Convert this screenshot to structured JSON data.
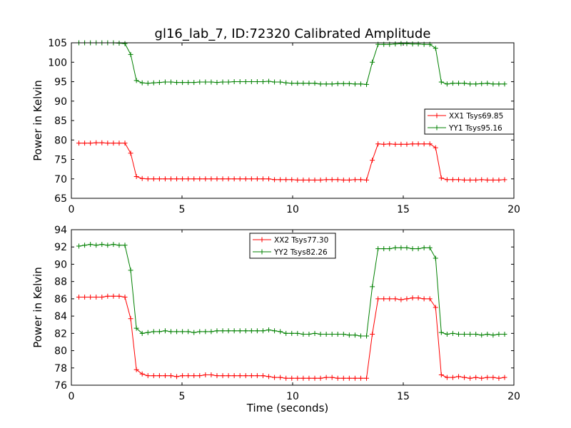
{
  "title": "gl16_lab_7, ID:72320 Calibrated Amplitude",
  "chart_data": [
    {
      "type": "line",
      "xlabel": "",
      "ylabel": "Power in Kelvin",
      "xlim": [
        0,
        20
      ],
      "ylim": [
        65,
        105
      ],
      "xticks": [
        "0",
        "5",
        "10",
        "15",
        "20"
      ],
      "yticks": [
        "65",
        "70",
        "75",
        "80",
        "85",
        "90",
        "95",
        "100",
        "105"
      ],
      "grid": false,
      "legend_position": "center-right",
      "x": [
        0.34,
        0.6,
        0.86,
        1.12,
        1.38,
        1.64,
        1.9,
        2.16,
        2.42,
        2.68,
        2.94,
        3.2,
        3.46,
        3.72,
        3.98,
        4.24,
        4.5,
        4.76,
        5.02,
        5.28,
        5.54,
        5.8,
        6.06,
        6.32,
        6.58,
        6.84,
        7.1,
        7.36,
        7.62,
        7.88,
        8.14,
        8.4,
        8.66,
        8.92,
        9.18,
        9.44,
        9.7,
        9.96,
        10.22,
        10.48,
        10.74,
        11.0,
        11.26,
        11.52,
        11.78,
        12.04,
        12.3,
        12.56,
        12.82,
        13.08,
        13.34,
        13.6,
        13.86,
        14.12,
        14.38,
        14.64,
        14.9,
        15.16,
        15.42,
        15.68,
        15.94,
        16.2,
        16.46,
        16.72,
        16.98,
        17.24,
        17.5,
        17.76,
        18.02,
        18.28,
        18.54,
        18.8,
        19.06,
        19.32,
        19.58
      ],
      "series": [
        {
          "name": "XX1 Tsys69.85",
          "color": "#ff0000",
          "values": [
            79.2,
            79.2,
            79.2,
            79.3,
            79.3,
            79.2,
            79.2,
            79.2,
            79.2,
            76.6,
            70.6,
            70.1,
            70.0,
            70.0,
            70.0,
            70.0,
            70.0,
            70.0,
            70.0,
            70.0,
            70.0,
            70.0,
            70.0,
            70.0,
            70.0,
            70.0,
            70.0,
            70.0,
            70.0,
            70.0,
            70.0,
            70.0,
            70.0,
            70.0,
            69.8,
            69.8,
            69.8,
            69.8,
            69.7,
            69.7,
            69.7,
            69.7,
            69.7,
            69.8,
            69.8,
            69.8,
            69.7,
            69.7,
            69.8,
            69.8,
            69.7,
            74.8,
            79.0,
            78.9,
            79.0,
            78.9,
            78.9,
            78.9,
            79.0,
            79.0,
            79.0,
            79.0,
            78.0,
            70.2,
            69.8,
            69.8,
            69.8,
            69.7,
            69.7,
            69.7,
            69.8,
            69.7,
            69.7,
            69.7,
            69.8
          ]
        },
        {
          "name": "YY1 Tsys95.16",
          "color": "#008000",
          "values": [
            105.0,
            105.0,
            105.0,
            105.0,
            105.0,
            105.0,
            105.0,
            104.9,
            104.8,
            102.0,
            95.3,
            94.7,
            94.6,
            94.7,
            94.8,
            94.9,
            94.9,
            94.8,
            94.8,
            94.8,
            94.8,
            94.9,
            94.9,
            94.9,
            94.8,
            94.9,
            94.9,
            95.0,
            95.0,
            95.0,
            95.0,
            95.0,
            95.0,
            95.1,
            94.9,
            94.9,
            94.7,
            94.6,
            94.6,
            94.6,
            94.6,
            94.6,
            94.4,
            94.4,
            94.4,
            94.5,
            94.5,
            94.5,
            94.4,
            94.4,
            94.3,
            100.0,
            104.6,
            104.6,
            104.6,
            104.7,
            104.8,
            104.8,
            104.7,
            104.7,
            104.6,
            104.6,
            103.6,
            94.9,
            94.4,
            94.6,
            94.6,
            94.6,
            94.4,
            94.4,
            94.5,
            94.6,
            94.4,
            94.4,
            94.4
          ]
        }
      ]
    },
    {
      "type": "line",
      "xlabel": "Time (seconds)",
      "ylabel": "Power in Kelvin",
      "xlim": [
        0,
        20
      ],
      "ylim": [
        76,
        94
      ],
      "xticks": [
        "0",
        "5",
        "10",
        "15",
        "20"
      ],
      "yticks": [
        "76",
        "78",
        "80",
        "82",
        "84",
        "86",
        "88",
        "90",
        "92",
        "94"
      ],
      "grid": false,
      "legend_position": "top-center",
      "x": [
        0.34,
        0.6,
        0.86,
        1.12,
        1.38,
        1.64,
        1.9,
        2.16,
        2.42,
        2.68,
        2.94,
        3.2,
        3.46,
        3.72,
        3.98,
        4.24,
        4.5,
        4.76,
        5.02,
        5.28,
        5.54,
        5.8,
        6.06,
        6.32,
        6.58,
        6.84,
        7.1,
        7.36,
        7.62,
        7.88,
        8.14,
        8.4,
        8.66,
        8.92,
        9.18,
        9.44,
        9.7,
        9.96,
        10.22,
        10.48,
        10.74,
        11.0,
        11.26,
        11.52,
        11.78,
        12.04,
        12.3,
        12.56,
        12.82,
        13.08,
        13.34,
        13.6,
        13.86,
        14.12,
        14.38,
        14.64,
        14.9,
        15.16,
        15.42,
        15.68,
        15.94,
        16.2,
        16.46,
        16.72,
        16.98,
        17.24,
        17.5,
        17.76,
        18.02,
        18.28,
        18.54,
        18.8,
        19.06,
        19.32,
        19.58
      ],
      "series": [
        {
          "name": "XX2 Tsys77.30",
          "color": "#ff0000",
          "values": [
            86.2,
            86.2,
            86.2,
            86.2,
            86.2,
            86.3,
            86.3,
            86.3,
            86.2,
            83.7,
            77.8,
            77.3,
            77.1,
            77.1,
            77.1,
            77.1,
            77.1,
            77.0,
            77.1,
            77.1,
            77.1,
            77.1,
            77.2,
            77.2,
            77.1,
            77.1,
            77.1,
            77.1,
            77.1,
            77.1,
            77.1,
            77.1,
            77.1,
            77.0,
            76.9,
            76.9,
            76.8,
            76.8,
            76.8,
            76.8,
            76.8,
            76.8,
            76.8,
            76.9,
            76.9,
            76.8,
            76.8,
            76.8,
            76.8,
            76.8,
            76.8,
            81.9,
            86.0,
            86.0,
            86.0,
            86.0,
            85.9,
            86.0,
            86.1,
            86.1,
            86.0,
            86.0,
            85.0,
            77.2,
            76.9,
            76.9,
            77.0,
            76.9,
            76.8,
            76.9,
            76.8,
            76.9,
            76.9,
            76.8,
            76.9
          ]
        },
        {
          "name": "YY2 Tsys82.26",
          "color": "#008000",
          "values": [
            92.1,
            92.2,
            92.3,
            92.2,
            92.3,
            92.2,
            92.3,
            92.2,
            92.2,
            89.3,
            82.6,
            82.0,
            82.1,
            82.2,
            82.2,
            82.3,
            82.2,
            82.2,
            82.2,
            82.2,
            82.1,
            82.2,
            82.2,
            82.2,
            82.3,
            82.3,
            82.3,
            82.3,
            82.3,
            82.3,
            82.3,
            82.3,
            82.3,
            82.4,
            82.3,
            82.2,
            82.0,
            82.0,
            82.0,
            81.9,
            81.9,
            82.0,
            81.9,
            81.9,
            81.9,
            81.9,
            81.9,
            81.8,
            81.8,
            81.7,
            81.7,
            87.4,
            91.8,
            91.8,
            91.8,
            91.9,
            91.9,
            91.9,
            91.8,
            91.8,
            91.9,
            91.9,
            90.7,
            82.1,
            81.9,
            82.0,
            81.9,
            81.9,
            81.9,
            81.9,
            81.8,
            81.9,
            81.8,
            81.9,
            81.9
          ]
        }
      ]
    }
  ]
}
